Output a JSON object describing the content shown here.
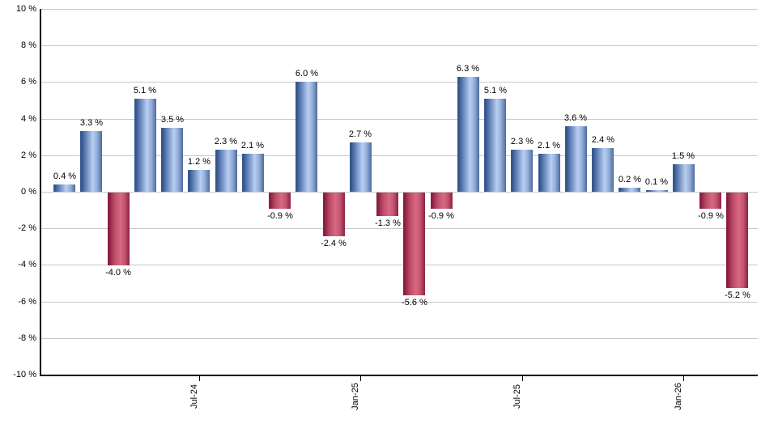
{
  "chart_data": {
    "type": "bar",
    "title": "",
    "xlabel": "",
    "ylabel": "",
    "ylim": [
      -10,
      10
    ],
    "grid": "horizontal-only",
    "legend_position": "none",
    "unit": "%",
    "values": [
      0.4,
      3.3,
      -4.0,
      5.1,
      3.5,
      1.2,
      2.3,
      2.1,
      -0.9,
      6.0,
      -2.4,
      2.7,
      -1.3,
      -5.6,
      -0.9,
      6.3,
      5.1,
      2.3,
      2.1,
      3.6,
      2.4,
      0.2,
      0.1,
      1.5,
      -0.9,
      -5.2
    ],
    "bar_labels": [
      "0.4 %",
      "3.3 %",
      "-4.0 %",
      "5.1 %",
      "3.5 %",
      "1.2 %",
      "2.3 %",
      "2.1 %",
      "-0.9 %",
      "6.0 %",
      "-2.4 %",
      "2.7 %",
      "-1.3 %",
      "-5.6 %",
      "-0.9 %",
      "6.3 %",
      "5.1 %",
      "2.3 %",
      "2.1 %",
      "3.6 %",
      "2.4 %",
      "0.2 %",
      "0.1 %",
      "1.5 %",
      "-0.9 %",
      "-5.2 %"
    ],
    "x_ticks": [
      {
        "bar_index": 5,
        "label": "Jul-24"
      },
      {
        "bar_index": 11,
        "label": "Jan-25"
      },
      {
        "bar_index": 17,
        "label": "Jul-25"
      },
      {
        "bar_index": 23,
        "label": "Jan-26"
      }
    ],
    "y_ticks": [
      {
        "value": 10,
        "label": "10 %"
      },
      {
        "value": 8,
        "label": "8 %"
      },
      {
        "value": 6,
        "label": "6 %"
      },
      {
        "value": 4,
        "label": "4 %"
      },
      {
        "value": 2,
        "label": "2 %"
      },
      {
        "value": 0,
        "label": "0 %"
      },
      {
        "value": -2,
        "label": "-2 %"
      },
      {
        "value": -4,
        "label": "-4 %"
      },
      {
        "value": -6,
        "label": "-6 %"
      },
      {
        "value": -8,
        "label": "-8 %"
      },
      {
        "value": -10,
        "label": "-10 %"
      }
    ],
    "colors": {
      "positive_bar": "#7ba0d4",
      "negative_bar": "#c04a66",
      "gridline": "#c8c8c8",
      "axis": "#000000",
      "label_text": "#000000"
    }
  }
}
